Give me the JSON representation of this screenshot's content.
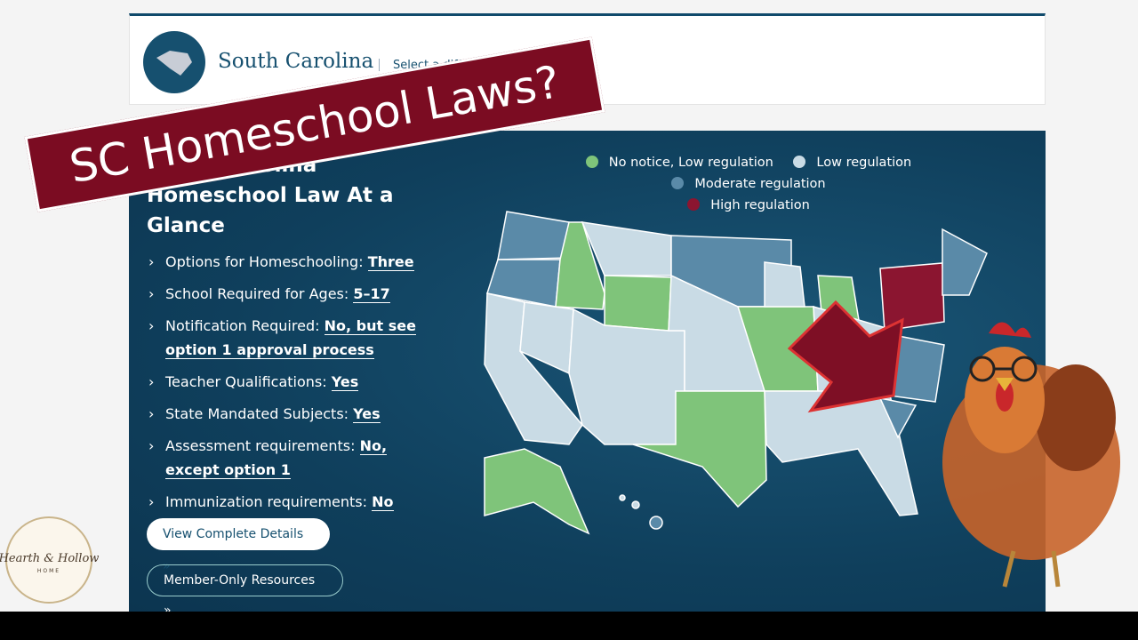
{
  "header": {
    "state": "South Carolina",
    "select": "Select a differe"
  },
  "banner": "SC Homeschool Laws?",
  "panel": {
    "heading": "South Carolina Homeschool Law At a Glance",
    "items": [
      {
        "label": "Options for Homeschooling:",
        "value": "Three"
      },
      {
        "label": "School Required for Ages:",
        "value": "5–17"
      },
      {
        "label": "Notification Required:",
        "value": "No, but see option 1 approval process"
      },
      {
        "label": "Teacher Qualifications:",
        "value": "Yes"
      },
      {
        "label": "State Mandated Subjects:",
        "value": "Yes"
      },
      {
        "label": "Assessment requirements:",
        "value": "No, except option 1"
      },
      {
        "label": "Immunization requirements:",
        "value": "No"
      }
    ],
    "buttons": [
      "View Complete Details »",
      "Member-Only Resources »"
    ]
  },
  "legend": [
    "No notice, Low regulation",
    "Low regulation",
    "Moderate regulation",
    "High regulation"
  ],
  "logo": {
    "name": "Hearth & Hollow",
    "sub": "HOME"
  }
}
